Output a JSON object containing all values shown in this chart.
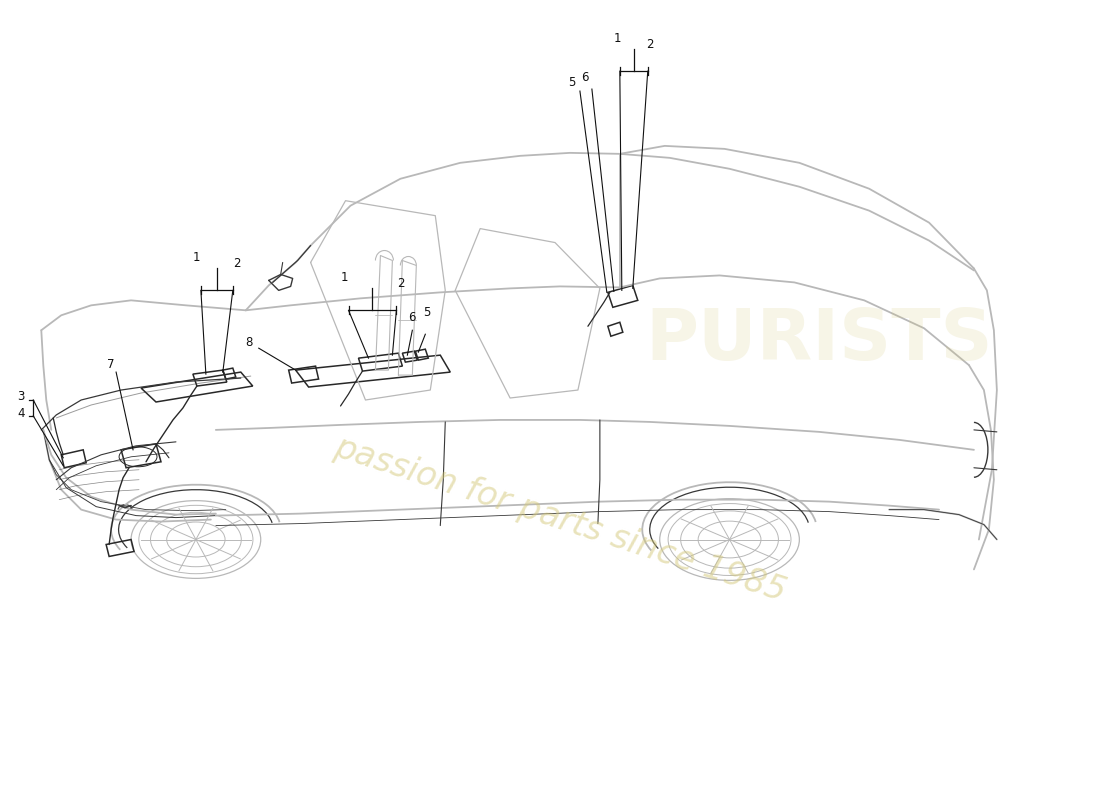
{
  "background_color": "#ffffff",
  "car_line_color": "#b8b8b8",
  "detail_line_color": "#383838",
  "sensor_line_color": "#282828",
  "watermark_color": "#d4c87a",
  "watermark_text": "passion for parts since 1985",
  "watermark_alpha": 0.5,
  "watermark_fontsize": 24,
  "logo_text": "PURISTS",
  "logo_alpha": 0.18,
  "logo_fontsize": 52,
  "fig_width": 11.0,
  "fig_height": 8.0,
  "dpi": 100
}
